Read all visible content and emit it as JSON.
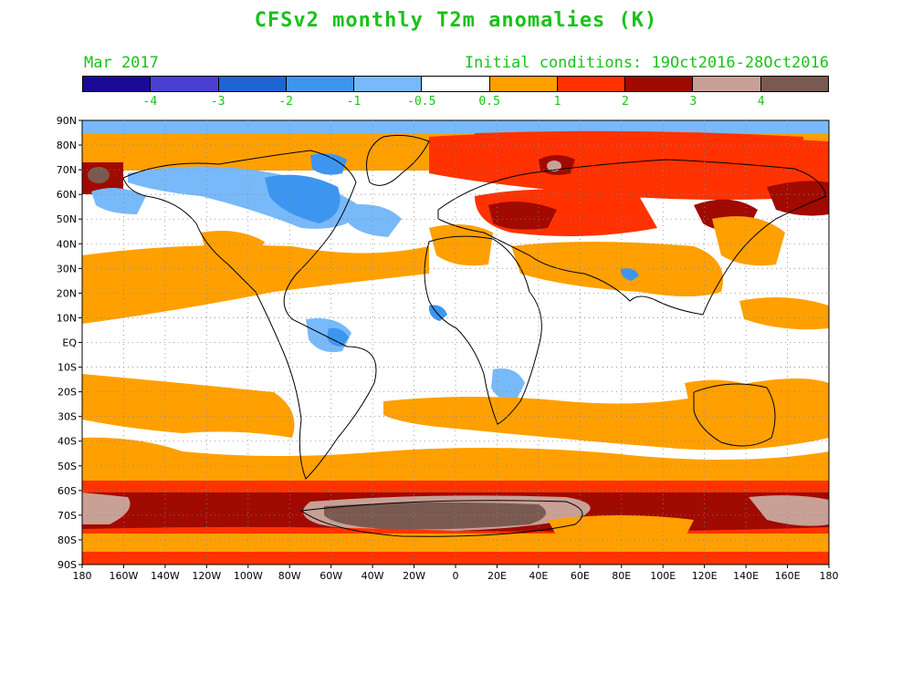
{
  "title": "CFSv2 monthly T2m anomalies (K)",
  "valid_month": "Mar 2017",
  "initial_conditions": "Initial conditions: 19Oct2016-28Oct2016",
  "colorbar": {
    "colors": [
      "#1a0a96",
      "#4b3fd1",
      "#1e64d2",
      "#3c96f0",
      "#78b9fa",
      "#ffffff",
      "#ffa000",
      "#ff3200",
      "#a00a00",
      "#c8a096",
      "#7a5a50"
    ],
    "labels": [
      "-4",
      "-3",
      "-2",
      "-1",
      "-0.5",
      "0.5",
      "1",
      "2",
      "3",
      "4"
    ]
  },
  "axes": {
    "lat_labels": [
      "90N",
      "80N",
      "70N",
      "60N",
      "50N",
      "40N",
      "30N",
      "20N",
      "10N",
      "EQ",
      "10S",
      "20S",
      "30S",
      "40S",
      "50S",
      "60S",
      "70S",
      "80S",
      "90S"
    ],
    "lon_labels": [
      "180",
      "160W",
      "140W",
      "120W",
      "100W",
      "80W",
      "60W",
      "40W",
      "20W",
      "0",
      "20E",
      "40E",
      "60E",
      "80E",
      "100E",
      "120E",
      "140E",
      "160E",
      "180"
    ]
  }
}
